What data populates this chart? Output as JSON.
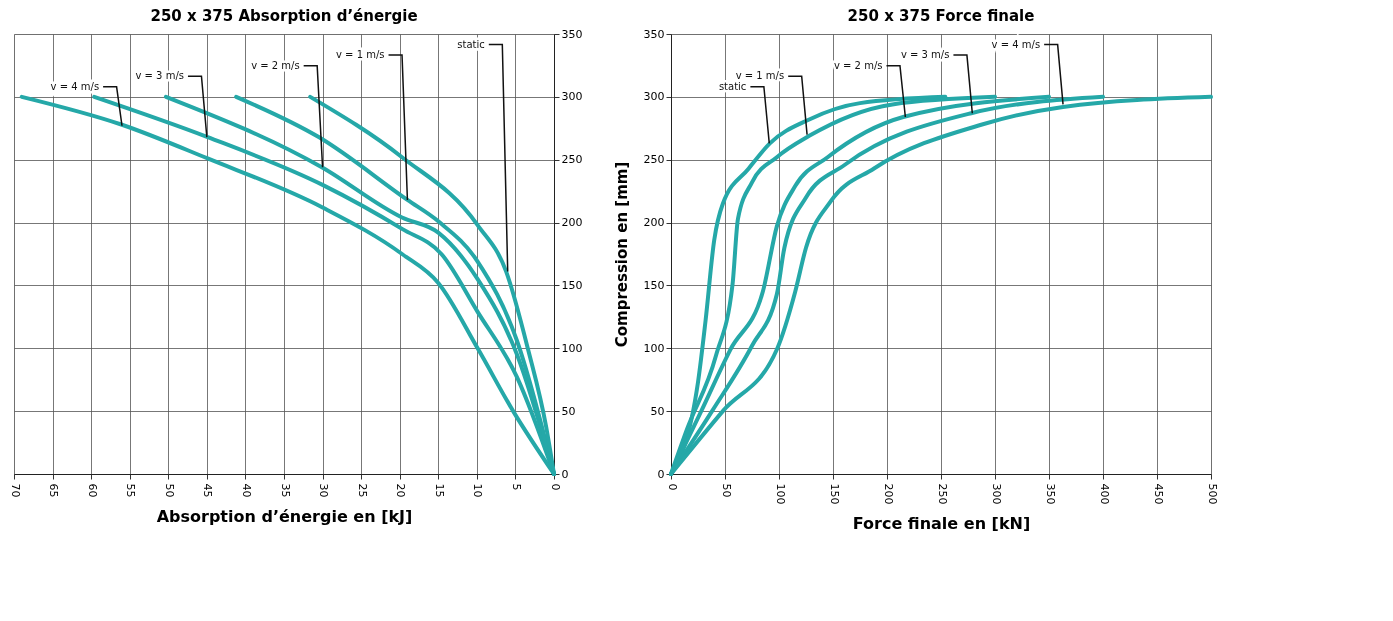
{
  "chart_data": [
    {
      "type": "line",
      "title": "250 x 375 Absorption d’énergie",
      "xlabel": "Absorption d’énergie en [kJ]",
      "xlim": [
        70,
        0
      ],
      "xticks": [
        70,
        65,
        60,
        55,
        50,
        45,
        40,
        35,
        30,
        25,
        20,
        15,
        10,
        5,
        0
      ],
      "ylim": [
        0,
        350
      ],
      "yticks": [
        0,
        50,
        100,
        150,
        200,
        250,
        300,
        350
      ],
      "grid": true,
      "legend": false,
      "line_style": "solid",
      "marker": "none",
      "series": [
        {
          "color": "#25a8a8",
          "x": [
            69,
            56.1,
            44.9,
            30,
            19.7,
            15,
            9.9,
            5.2,
            0
          ],
          "values": [
            300,
            278,
            251,
            212,
            175,
            152,
            100,
            49,
            0
          ]
        },
        {
          "color": "#25a8a8",
          "x": [
            59.6,
            44.9,
            30,
            19.7,
            14.6,
            9.9,
            4.8,
            0
          ],
          "values": [
            300,
            268,
            230,
            195,
            175,
            129,
            77,
            0
          ]
        },
        {
          "color": "#25a8a8",
          "x": [
            50.3,
            30.1,
            19.7,
            15,
            9.9,
            4.8,
            0
          ],
          "values": [
            300,
            244,
            204,
            192,
            155,
            95,
            0
          ]
        },
        {
          "color": "#25a8a8",
          "x": [
            41.2,
            30.5,
            19,
            15,
            9.9,
            4.8,
            0
          ],
          "values": [
            300,
            268,
            218,
            201,
            169,
            106,
            0
          ]
        },
        {
          "color": "#25a8a8",
          "x": [
            31.6,
            19.7,
            9.9,
            6.2,
            3.4,
            1,
            0
          ],
          "values": [
            300,
            252,
            198,
            161,
            100,
            37,
            0
          ]
        }
      ],
      "annotations": [
        {
          "text": "v = 4 m/s",
          "x": 56,
          "y": 277
        },
        {
          "text": "v = 3 m/s",
          "x": 45,
          "y": 268
        },
        {
          "text": "v = 2 m/s",
          "x": 30,
          "y": 244
        },
        {
          "text": "v = 1 m/s",
          "x": 19,
          "y": 218
        },
        {
          "text": "static",
          "x": 6,
          "y": 161
        }
      ]
    },
    {
      "type": "line",
      "title": "250 x 375 Force finale",
      "xlabel": "Force finale en [kN]",
      "ylabel": "Compression en [mm]",
      "xlim": [
        0,
        500
      ],
      "xticks": [
        0,
        50,
        100,
        150,
        200,
        250,
        300,
        350,
        400,
        450,
        500
      ],
      "ylim": [
        0,
        350
      ],
      "yticks": [
        0,
        50,
        100,
        150,
        200,
        250,
        300,
        350
      ],
      "grid": true,
      "legend": false,
      "line_style": "solid",
      "marker": "none",
      "series": [
        {
          "color": "#25a8a8",
          "x": [
            0,
            25,
            32,
            40,
            48,
            72,
            91.5,
            128,
            175,
            254
          ],
          "values": [
            0,
            73,
            122,
            186,
            215,
            243,
            263,
            282,
            295,
            300
          ]
        },
        {
          "color": "#25a8a8",
          "x": [
            0,
            15,
            41.6,
            57,
            62,
            75,
            98,
            128,
            205,
            300
          ],
          "values": [
            0,
            36,
            94,
            151,
            203,
            232,
            252,
            269,
            294,
            300
          ]
        },
        {
          "color": "#25a8a8",
          "x": [
            0,
            28,
            55,
            85,
            98,
            115,
            145,
            215,
            350
          ],
          "values": [
            0,
            50,
            99,
            145,
            197,
            229,
            252,
            284,
            300
          ]
        },
        {
          "color": "#25a8a8",
          "x": [
            0,
            38,
            75,
            98,
            105,
            125,
            161,
            278,
            400
          ],
          "values": [
            0,
            50,
            102,
            143,
            180,
            220,
            246,
            287,
            300
          ]
        },
        {
          "color": "#25a8a8",
          "x": [
            0,
            48,
            98,
            115,
            125,
            148,
            188,
            288,
            363,
            500
          ],
          "values": [
            0,
            50,
            99,
            145,
            180,
            217,
            243,
            278,
            292,
            300
          ]
        }
      ],
      "annotations": [
        {
          "text": "static",
          "x": 91,
          "y": 263
        },
        {
          "text": "v = 1 m/s",
          "x": 126,
          "y": 270
        },
        {
          "text": "v = 2 m/s",
          "x": 217,
          "y": 284
        },
        {
          "text": "v = 3 m/s",
          "x": 279,
          "y": 287
        },
        {
          "text": "v = 4 m/s",
          "x": 363,
          "y": 294
        }
      ]
    }
  ]
}
